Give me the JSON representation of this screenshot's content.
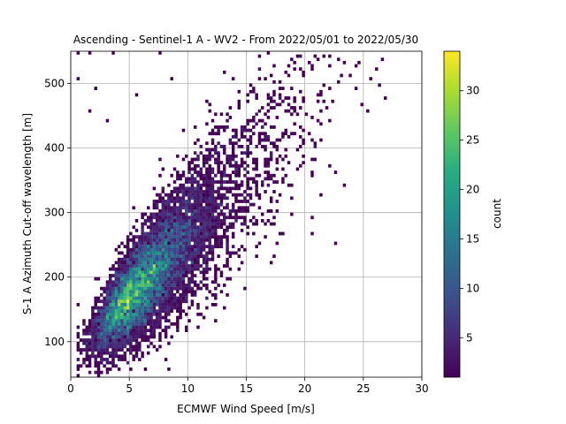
{
  "chart_data": {
    "type": "heatmap",
    "title": "Ascending - Sentinel-1 A - WV2 - From 2022/05/01 to 2022/05/30",
    "xlabel": "ECMWF Wind Speed [m/s]",
    "ylabel": "S-1 A Azimuth Cut-off wavelength [m]",
    "xlim": [
      0,
      30
    ],
    "ylim": [
      45,
      550
    ],
    "xticks": [
      0,
      5,
      10,
      15,
      20,
      25,
      30
    ],
    "yticks": [
      100,
      200,
      300,
      400,
      500
    ],
    "grid": true,
    "colorbar": {
      "label": "count",
      "range": [
        1,
        34
      ],
      "ticks": [
        5,
        10,
        15,
        20,
        25,
        30
      ],
      "colormap": "viridis"
    },
    "bin_size": {
      "x": 0.25,
      "y": 5
    },
    "distribution": {
      "center_start": [
        2.5,
        120
      ],
      "center_end": [
        17,
        400
      ],
      "peak_count": 34,
      "peak_location": [
        6.5,
        195
      ],
      "linear_trend": "cut-off wavelength increases with wind speed, spread widens at higher winds"
    },
    "sparse_outliers": [
      [
        0.5,
        545
      ],
      [
        1.5,
        545
      ],
      [
        3.5,
        545
      ],
      [
        7.5,
        545
      ],
      [
        0.5,
        505
      ],
      [
        2,
        490
      ],
      [
        1.5,
        455
      ],
      [
        3,
        440
      ],
      [
        18.5,
        510
      ],
      [
        19.5,
        520
      ],
      [
        20.5,
        520
      ],
      [
        21,
        440
      ],
      [
        22,
        370
      ],
      [
        20.5,
        290
      ],
      [
        20.5,
        265
      ],
      [
        1.5,
        50
      ],
      [
        2,
        50
      ],
      [
        3,
        65
      ],
      [
        0.5,
        120
      ],
      [
        0.5,
        155
      ],
      [
        17.5,
        465
      ],
      [
        18.5,
        475
      ],
      [
        5.5,
        480
      ],
      [
        8.5,
        505
      ]
    ]
  }
}
